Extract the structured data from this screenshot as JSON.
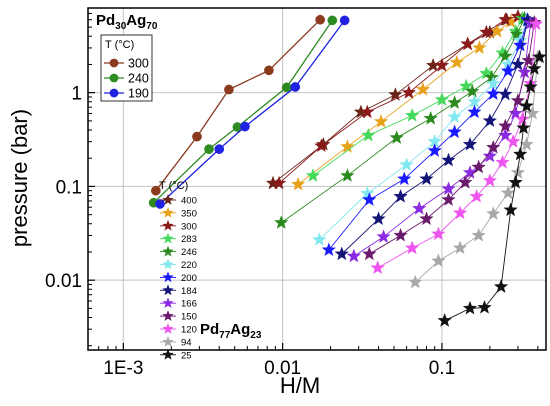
{
  "chart_data": {
    "type": "scatter",
    "xlabel": "H/M",
    "ylabel": "pressure (bar)",
    "xscale": "log",
    "yscale": "log",
    "xlim": [
      0.0006,
      0.45
    ],
    "ylim": [
      0.0018,
      8
    ],
    "x_ticks": [
      {
        "value": 0.001,
        "label": "1E-3"
      },
      {
        "value": 0.01,
        "label": "0.01"
      },
      {
        "value": 0.1,
        "label": "0.1"
      }
    ],
    "y_ticks": [
      {
        "value": 0.01,
        "label": "0.01"
      },
      {
        "value": 0.1,
        "label": "0.1"
      },
      {
        "value": 1,
        "label": "1"
      }
    ],
    "grid": true,
    "groups": [
      {
        "alloy": {
          "base": "Pd",
          "sub1": "30",
          "mid": "Ag",
          "sub2": "70"
        },
        "legend_title": "T (°C)",
        "legend_placement": "top-left",
        "marker": "circle",
        "series": [
          {
            "name": "300",
            "color": "#8b3a1e",
            "x": [
              0.0016,
              0.0029,
              0.0046,
              0.0082,
              0.0172
            ],
            "y": [
              0.09,
              0.34,
              1.08,
              1.73,
              6.0
            ]
          },
          {
            "name": "240",
            "color": "#2e8b22",
            "x": [
              0.00155,
              0.00345,
              0.0052,
              0.0106,
              0.0205
            ],
            "y": [
              0.067,
              0.25,
              0.43,
              1.14,
              5.9
            ]
          },
          {
            "name": "190",
            "color": "#1f22e0",
            "x": [
              0.0017,
              0.004,
              0.0058,
              0.012,
              0.0245
            ],
            "y": [
              0.065,
              0.25,
              0.435,
              1.15,
              5.9
            ]
          }
        ]
      },
      {
        "alloy": {
          "base": "Pd",
          "sub1": "77",
          "mid": "Ag",
          "sub2": "23"
        },
        "legend_title": "T (°C)",
        "legend_placement": "bottom-left",
        "marker": "star",
        "series": [
          {
            "name": "400",
            "color": "#6b2418",
            "x": [
              0.0087,
              0.018,
              0.031,
              0.051,
              0.088,
              0.145,
              0.2,
              0.255
            ],
            "y": [
              0.108,
              0.28,
              0.62,
              0.95,
              1.95,
              3.3,
              4.4,
              6.0
            ]
          },
          {
            "name": "350",
            "color": "#e8a21a",
            "x": [
              0.0125,
              0.0255,
              0.0415,
              0.076,
              0.124,
              0.172,
              0.222,
              0.27,
              0.3
            ],
            "y": [
              0.105,
              0.265,
              0.49,
              1.08,
              2.1,
              3.0,
              4.5,
              5.7,
              6.4
            ]
          },
          {
            "name": "300",
            "color": "#8b1a1a",
            "x": [
              0.0095,
              0.0175,
              0.034,
              0.062,
              0.1,
              0.145,
              0.19,
              0.25,
              0.3
            ],
            "y": [
              0.108,
              0.27,
              0.62,
              1.0,
              1.95,
              3.3,
              4.4,
              6.0,
              6.5
            ]
          },
          {
            "name": "283",
            "color": "#44d95a",
            "x": [
              0.0155,
              0.0345,
              0.065,
              0.1,
              0.142,
              0.19,
              0.24,
              0.29,
              0.32
            ],
            "y": [
              0.13,
              0.35,
              0.57,
              0.84,
              1.17,
              1.6,
              2.65,
              4.5,
              6.2
            ]
          },
          {
            "name": "246",
            "color": "#2b8a1e",
            "x": [
              0.0098,
              0.0255,
              0.052,
              0.085,
              0.12,
              0.155,
              0.205,
              0.25,
              0.295,
              0.33
            ],
            "y": [
              0.041,
              0.13,
              0.33,
              0.53,
              0.78,
              1.03,
              1.45,
              2.45,
              4.2,
              6.2
            ]
          },
          {
            "name": "220",
            "color": "#82e8f0",
            "x": [
              0.017,
              0.034,
              0.06,
              0.09,
              0.12,
              0.16,
              0.21,
              0.26,
              0.31,
              0.34
            ],
            "y": [
              0.027,
              0.084,
              0.17,
              0.3,
              0.55,
              0.8,
              1.25,
              2.0,
              3.6,
              6.0
            ]
          },
          {
            "name": "200",
            "color": "#1a1aff",
            "x": [
              0.0195,
              0.035,
              0.058,
              0.09,
              0.12,
              0.16,
              0.21,
              0.26,
              0.31,
              0.345
            ],
            "y": [
              0.021,
              0.072,
              0.12,
              0.24,
              0.38,
              0.62,
              0.97,
              1.7,
              3.2,
              6.0
            ]
          },
          {
            "name": "184",
            "color": "#141478",
            "x": [
              0.0235,
              0.04,
              0.055,
              0.08,
              0.11,
              0.15,
              0.2,
              0.25,
              0.3,
              0.345
            ],
            "y": [
              0.019,
              0.045,
              0.078,
              0.12,
              0.19,
              0.28,
              0.5,
              0.96,
              2.0,
              5.9
            ]
          },
          {
            "name": "166",
            "color": "#8a2be2",
            "x": [
              0.028,
              0.043,
              0.072,
              0.11,
              0.15,
              0.2,
              0.25,
              0.29,
              0.33,
              0.36
            ],
            "y": [
              0.018,
              0.029,
              0.058,
              0.094,
              0.14,
              0.21,
              0.35,
              0.6,
              1.65,
              5.5
            ]
          },
          {
            "name": "150",
            "color": "#6a1a6a",
            "x": [
              0.035,
              0.055,
              0.08,
              0.11,
              0.14,
              0.17,
              0.21,
              0.25,
              0.3,
              0.35,
              0.38
            ],
            "y": [
              0.019,
              0.03,
              0.045,
              0.072,
              0.11,
              0.16,
              0.26,
              0.44,
              0.82,
              2.2,
              5.6
            ]
          },
          {
            "name": "120",
            "color": "#ee55ee",
            "x": [
              0.0395,
              0.065,
              0.095,
              0.13,
              0.165,
              0.2,
              0.24,
              0.28,
              0.32,
              0.36,
              0.39
            ],
            "y": [
              0.0135,
              0.022,
              0.031,
              0.052,
              0.078,
              0.115,
              0.18,
              0.3,
              0.52,
              1.25,
              5.4
            ]
          },
          {
            "name": "94",
            "color": "#a8a8a8",
            "x": [
              0.068,
              0.095,
              0.13,
              0.17,
              0.21,
              0.26,
              0.3,
              0.34,
              0.37,
              0.4
            ],
            "y": [
              0.0095,
              0.016,
              0.022,
              0.03,
              0.051,
              0.085,
              0.14,
              0.28,
              0.6,
              2.4
            ]
          },
          {
            "name": "25",
            "color": "#111111",
            "x": [
              0.104,
              0.15,
              0.185,
              0.235,
              0.27,
              0.29,
              0.31,
              0.325,
              0.34,
              0.36,
              0.38,
              0.41
            ],
            "y": [
              0.0037,
              0.005,
              0.0051,
              0.0085,
              0.056,
              0.11,
              0.22,
              0.42,
              0.72,
              1.15,
              1.8,
              2.4
            ]
          }
        ]
      }
    ]
  }
}
